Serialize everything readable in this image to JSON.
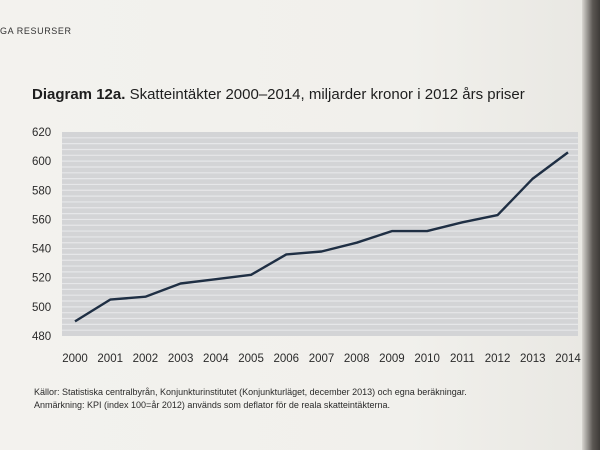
{
  "running_head": "GA RESURSER",
  "figure": {
    "label": "Diagram 12a.",
    "title": "Skatteintäkter 2000–2014, miljarder kronor i 2012 års priser"
  },
  "notes": {
    "sources": "Källor: Statistiska centralbyrån, Konjunkturinstitutet (Konjunkturläget, december 2013) och egna beräkningar.",
    "remark": "Anmärkning: KPI (index 100=år 2012) används som deflator för de reala skatteintäkterna."
  },
  "colors": {
    "plot_background": "#d3d4d6",
    "grid": "#e6e7e9",
    "line": "#1f2f44"
  },
  "chart_data": {
    "type": "line",
    "title": "Skatteintäkter 2000–2014, miljarder kronor i 2012 års priser",
    "xlabel": "",
    "ylabel": "",
    "x": [
      "2000",
      "2001",
      "2002",
      "2003",
      "2004",
      "2005",
      "2006",
      "2007",
      "2008",
      "2009",
      "2010",
      "2011",
      "2012",
      "2013",
      "2014"
    ],
    "series": [
      {
        "values": [
          490,
          505,
          507,
          516,
          519,
          522,
          536,
          538,
          544,
          552,
          552,
          558,
          563,
          588,
          606
        ]
      }
    ],
    "ylim": [
      480,
      620
    ],
    "yticks": [
      480,
      500,
      520,
      540,
      560,
      580,
      600,
      620
    ],
    "grid": true,
    "legend": "none"
  }
}
